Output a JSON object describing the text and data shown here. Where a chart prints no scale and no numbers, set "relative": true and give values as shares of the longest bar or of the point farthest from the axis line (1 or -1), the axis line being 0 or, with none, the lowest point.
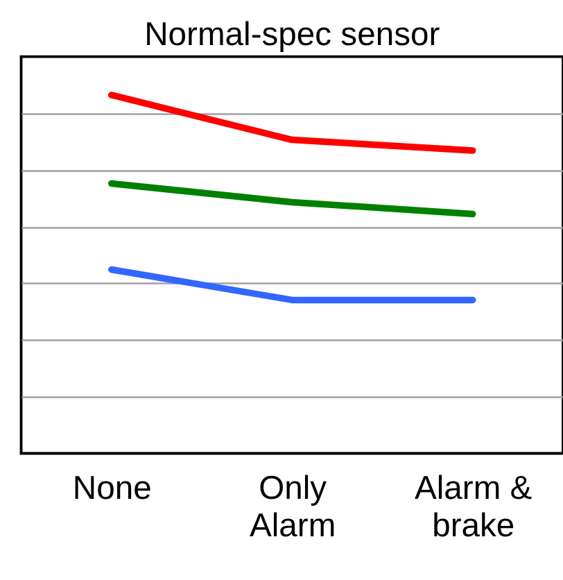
{
  "chart_data": {
    "type": "line",
    "title": "Normal-spec sensor",
    "relative": true,
    "grid": "y",
    "legend": false,
    "marker": "none",
    "line_style": "solid",
    "categories": [
      "None",
      "Only Alarm",
      "Alarm & brake"
    ],
    "series": [
      {
        "color": "#ff0000",
        "values": [
          1,
          0.875,
          0.845
        ]
      },
      {
        "color": "#008000",
        "values": [
          0.753,
          0.701,
          0.668
        ]
      },
      {
        "color": "#3366ff",
        "values": [
          0.513,
          0.428,
          0.428
        ]
      }
    ]
  }
}
